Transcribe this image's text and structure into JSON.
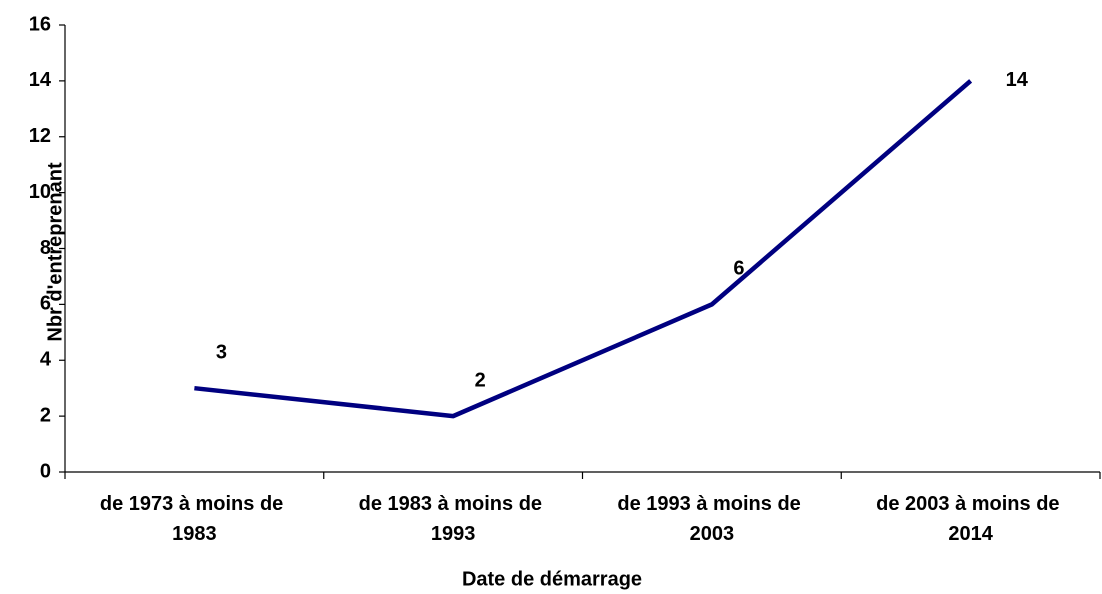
{
  "chart_data": {
    "type": "line",
    "x_label": "Date de démarrage",
    "y_label": "Nbr d'entreprenant",
    "categories": [
      "de 1973 à moins de 1983",
      "de 1983 à moins de 1993",
      "de 1993 à moins de 2003",
      "de 2003 à moins de 2014"
    ],
    "series": [
      {
        "name": "Nbr d'entreprenant",
        "color": "#000080",
        "values": [
          3,
          2,
          6,
          14
        ]
      }
    ],
    "ylim": [
      0,
      16
    ],
    "yticks": [
      0,
      2,
      4,
      6,
      8,
      10,
      12,
      14,
      16
    ],
    "grid": false
  }
}
